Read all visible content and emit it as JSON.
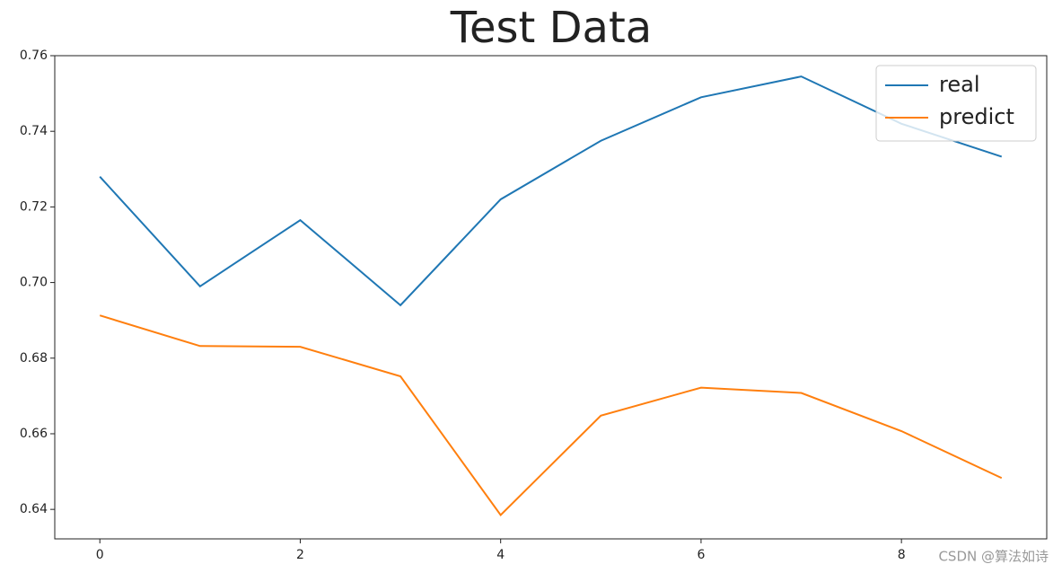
{
  "chart_data": {
    "type": "line",
    "title": "Test Data",
    "x": [
      0,
      1,
      2,
      3,
      4,
      5,
      6,
      7,
      8,
      9
    ],
    "series": [
      {
        "name": "real",
        "color": "#1f77b4",
        "values": [
          0.728,
          0.699,
          0.7165,
          0.694,
          0.722,
          0.7375,
          0.749,
          0.7545,
          0.742,
          0.7333
        ]
      },
      {
        "name": "predict",
        "color": "#ff7f0e",
        "values": [
          0.6913,
          0.6832,
          0.683,
          0.6752,
          0.6385,
          0.6648,
          0.6722,
          0.6708,
          0.6607,
          0.6483
        ]
      }
    ],
    "xlim": [
      -0.45,
      9.45
    ],
    "xticks": [
      0,
      2,
      4,
      6,
      8
    ],
    "ylim": [
      0.6322,
      0.76
    ],
    "yticks": [
      0.64,
      0.66,
      0.68,
      {
        "value": 0.7,
        "label": "0.70"
      },
      0.72,
      0.74,
      0.76
    ],
    "legend": "upper right",
    "grid": false,
    "watermark": "CSDN @算法如诗"
  }
}
